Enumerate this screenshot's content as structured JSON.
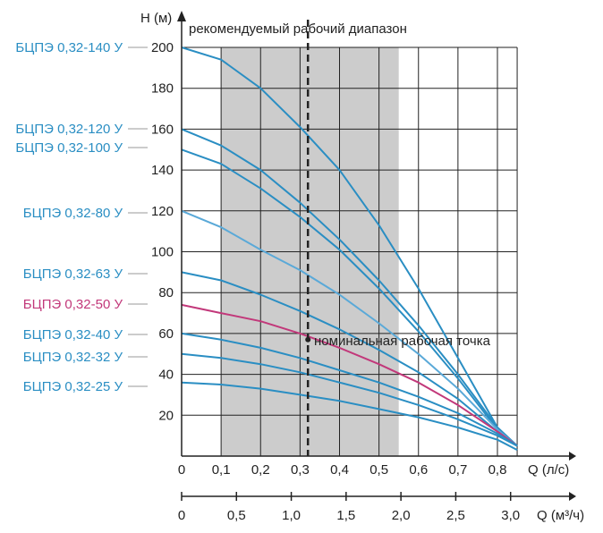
{
  "chart_data": {
    "type": "line",
    "ylabel": "H (м)",
    "xlabel": "Q (л/с)",
    "xlabel_secondary": "Q (м³/ч)",
    "annotation_range": "рекомендуемый рабочий диапазон",
    "annotation_point": "номинальная рабочая точка",
    "xlim": [
      0,
      0.85
    ],
    "ylim": [
      0,
      200
    ],
    "grid": true,
    "recommended_range": [
      0.1,
      0.55
    ],
    "nominal_flow": 0.32,
    "nominal_head": 57,
    "x_ticks": [
      "0",
      "0,1",
      "0,2",
      "0,3",
      "0,4",
      "0,5",
      "0,6",
      "0,7",
      "0,8"
    ],
    "x_tick_values": [
      0,
      0.1,
      0.2,
      0.3,
      0.4,
      0.5,
      0.6,
      0.7,
      0.8
    ],
    "y_ticks": [
      "20",
      "40",
      "60",
      "80",
      "100",
      "120",
      "140",
      "160",
      "180",
      "200"
    ],
    "y_tick_values": [
      20,
      40,
      60,
      80,
      100,
      120,
      140,
      160,
      180,
      200
    ],
    "x2_ticks": [
      "0",
      "0,5",
      "1,0",
      "1,5",
      "2,0",
      "2,5",
      "3,0"
    ],
    "x2_tick_values": [
      0,
      0.5,
      1.0,
      1.5,
      2.0,
      2.5,
      3.0
    ],
    "x2_scale": 3.6,
    "series": [
      {
        "name": "БЦПЭ 0,32-140 У",
        "color": "#2a8ec3",
        "x": [
          0,
          0.1,
          0.2,
          0.3,
          0.4,
          0.5,
          0.6,
          0.7,
          0.8,
          0.85
        ],
        "values": [
          200,
          194,
          180,
          161,
          140,
          113,
          82,
          48,
          14,
          5
        ]
      },
      {
        "name": "БЦПЭ 0,32-120 У",
        "color": "#2a8ec3",
        "x": [
          0,
          0.1,
          0.2,
          0.3,
          0.4,
          0.5,
          0.6,
          0.7,
          0.8,
          0.85
        ],
        "values": [
          160,
          152,
          140,
          124,
          106,
          86,
          64,
          40,
          14,
          5
        ]
      },
      {
        "name": "БЦПЭ 0,32-100 У",
        "color": "#2a8ec3",
        "x": [
          0,
          0.1,
          0.2,
          0.3,
          0.4,
          0.5,
          0.6,
          0.7,
          0.8,
          0.85
        ],
        "values": [
          150,
          143,
          131,
          117,
          101,
          82,
          61,
          38,
          13,
          5
        ]
      },
      {
        "name": "БЦПЭ 0,32-80 У",
        "color": "#5aa9d8",
        "x": [
          0,
          0.1,
          0.2,
          0.3,
          0.4,
          0.5,
          0.6,
          0.7,
          0.8,
          0.85
        ],
        "values": [
          120,
          112,
          101,
          91,
          79,
          65,
          50,
          33,
          13,
          5
        ]
      },
      {
        "name": "БЦПЭ 0,32-63 У",
        "color": "#2a8ec3",
        "x": [
          0,
          0.1,
          0.2,
          0.3,
          0.4,
          0.5,
          0.6,
          0.7,
          0.8,
          0.85
        ],
        "values": [
          90,
          86,
          79,
          71,
          62,
          52,
          41,
          28,
          12,
          5
        ]
      },
      {
        "name": "БЦПЭ 0,32-50 У",
        "color": "#c2387a",
        "x": [
          0,
          0.1,
          0.2,
          0.3,
          0.4,
          0.5,
          0.6,
          0.7,
          0.8,
          0.85
        ],
        "values": [
          74,
          70,
          66,
          60,
          53,
          45,
          36,
          25,
          12,
          5
        ]
      },
      {
        "name": "БЦПЭ 0,32-40 У",
        "color": "#2a8ec3",
        "x": [
          0,
          0.1,
          0.2,
          0.3,
          0.4,
          0.5,
          0.6,
          0.7,
          0.8,
          0.85
        ],
        "values": [
          60,
          57,
          53,
          48,
          42,
          36,
          29,
          21,
          11,
          5
        ]
      },
      {
        "name": "БЦПЭ 0,32-32 У",
        "color": "#2a8ec3",
        "x": [
          0,
          0.1,
          0.2,
          0.3,
          0.4,
          0.5,
          0.6,
          0.7,
          0.8,
          0.85
        ],
        "values": [
          50,
          48,
          45,
          41,
          36,
          31,
          25,
          18,
          10,
          5
        ]
      },
      {
        "name": "БЦПЭ 0,32-25 У",
        "color": "#2a8ec3",
        "x": [
          0,
          0.1,
          0.2,
          0.3,
          0.4,
          0.5,
          0.6,
          0.7,
          0.8,
          0.85
        ],
        "values": [
          36,
          35,
          33,
          30,
          27,
          23,
          19,
          14,
          8,
          3
        ]
      }
    ]
  },
  "pump_labels": [
    {
      "text": "БЦПЭ 0,32-140 У",
      "color": "#2a8ec3",
      "value": 200
    },
    {
      "text": "БЦПЭ 0,32-120 У",
      "color": "#2a8ec3",
      "value": 160
    },
    {
      "text": "БЦПЭ 0,32-100 У",
      "color": "#2a8ec3",
      "value": 150
    },
    {
      "text": "БЦПЭ 0,32-80 У",
      "color": "#2a8ec3",
      "value": 120
    },
    {
      "text": "БЦПЭ 0,32-63 У",
      "color": "#2a8ec3",
      "value": 90
    },
    {
      "text": "БЦПЭ 0,32-50 У",
      "color": "#c2387a",
      "value": 74
    },
    {
      "text": "БЦПЭ 0,32-40 У",
      "color": "#2a8ec3",
      "value": 60
    },
    {
      "text": "БЦПЭ 0,32-32 У",
      "color": "#2a8ec3",
      "value": 50
    },
    {
      "text": "БЦПЭ 0,32-25 У",
      "color": "#2a8ec3",
      "value": 36
    }
  ],
  "colors": {
    "range_fill": "#cccccc",
    "grid": "#222222",
    "axis": "#222222"
  }
}
